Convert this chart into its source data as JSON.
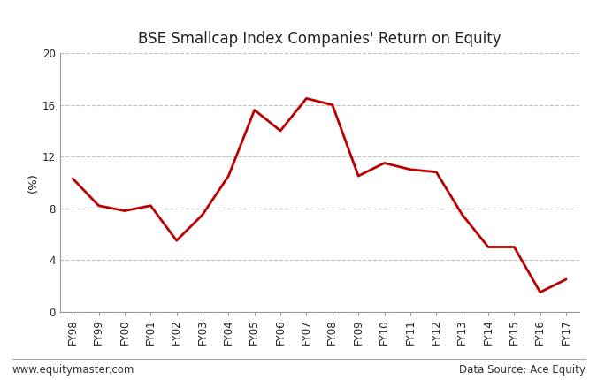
{
  "title": "BSE Smallcap Index Companies' Return on Equity",
  "ylabel": "(%)",
  "categories": [
    "FY98",
    "FY99",
    "FY00",
    "FY01",
    "FY02",
    "FY03",
    "FY04",
    "FY05",
    "FY06",
    "FY07",
    "FY08",
    "FY09",
    "FY10",
    "FY11",
    "FY12",
    "FY13",
    "FY14",
    "FY15",
    "FY16",
    "FY17"
  ],
  "values": [
    10.3,
    8.2,
    7.8,
    8.2,
    5.5,
    7.5,
    10.5,
    15.6,
    14.0,
    16.5,
    16.0,
    10.5,
    11.5,
    11.0,
    10.8,
    7.5,
    5.0,
    5.0,
    1.5,
    2.5
  ],
  "line_color": "#bb0000",
  "line_width": 2.0,
  "ylim": [
    0,
    20
  ],
  "yticks": [
    0,
    4,
    8,
    12,
    16,
    20
  ],
  "grid_color": "#bbbbbb",
  "grid_linestyle": "--",
  "background_color": "#ffffff",
  "footer_left": "www.equitymaster.com",
  "footer_right": "Data Source: Ace Equity",
  "title_color": "#222222",
  "axis_label_color": "#222222",
  "footer_color": "#333333",
  "title_fontsize": 12,
  "axis_label_fontsize": 9.5,
  "tick_label_fontsize": 8.5,
  "footer_fontsize": 8.5,
  "spine_color": "#999999"
}
